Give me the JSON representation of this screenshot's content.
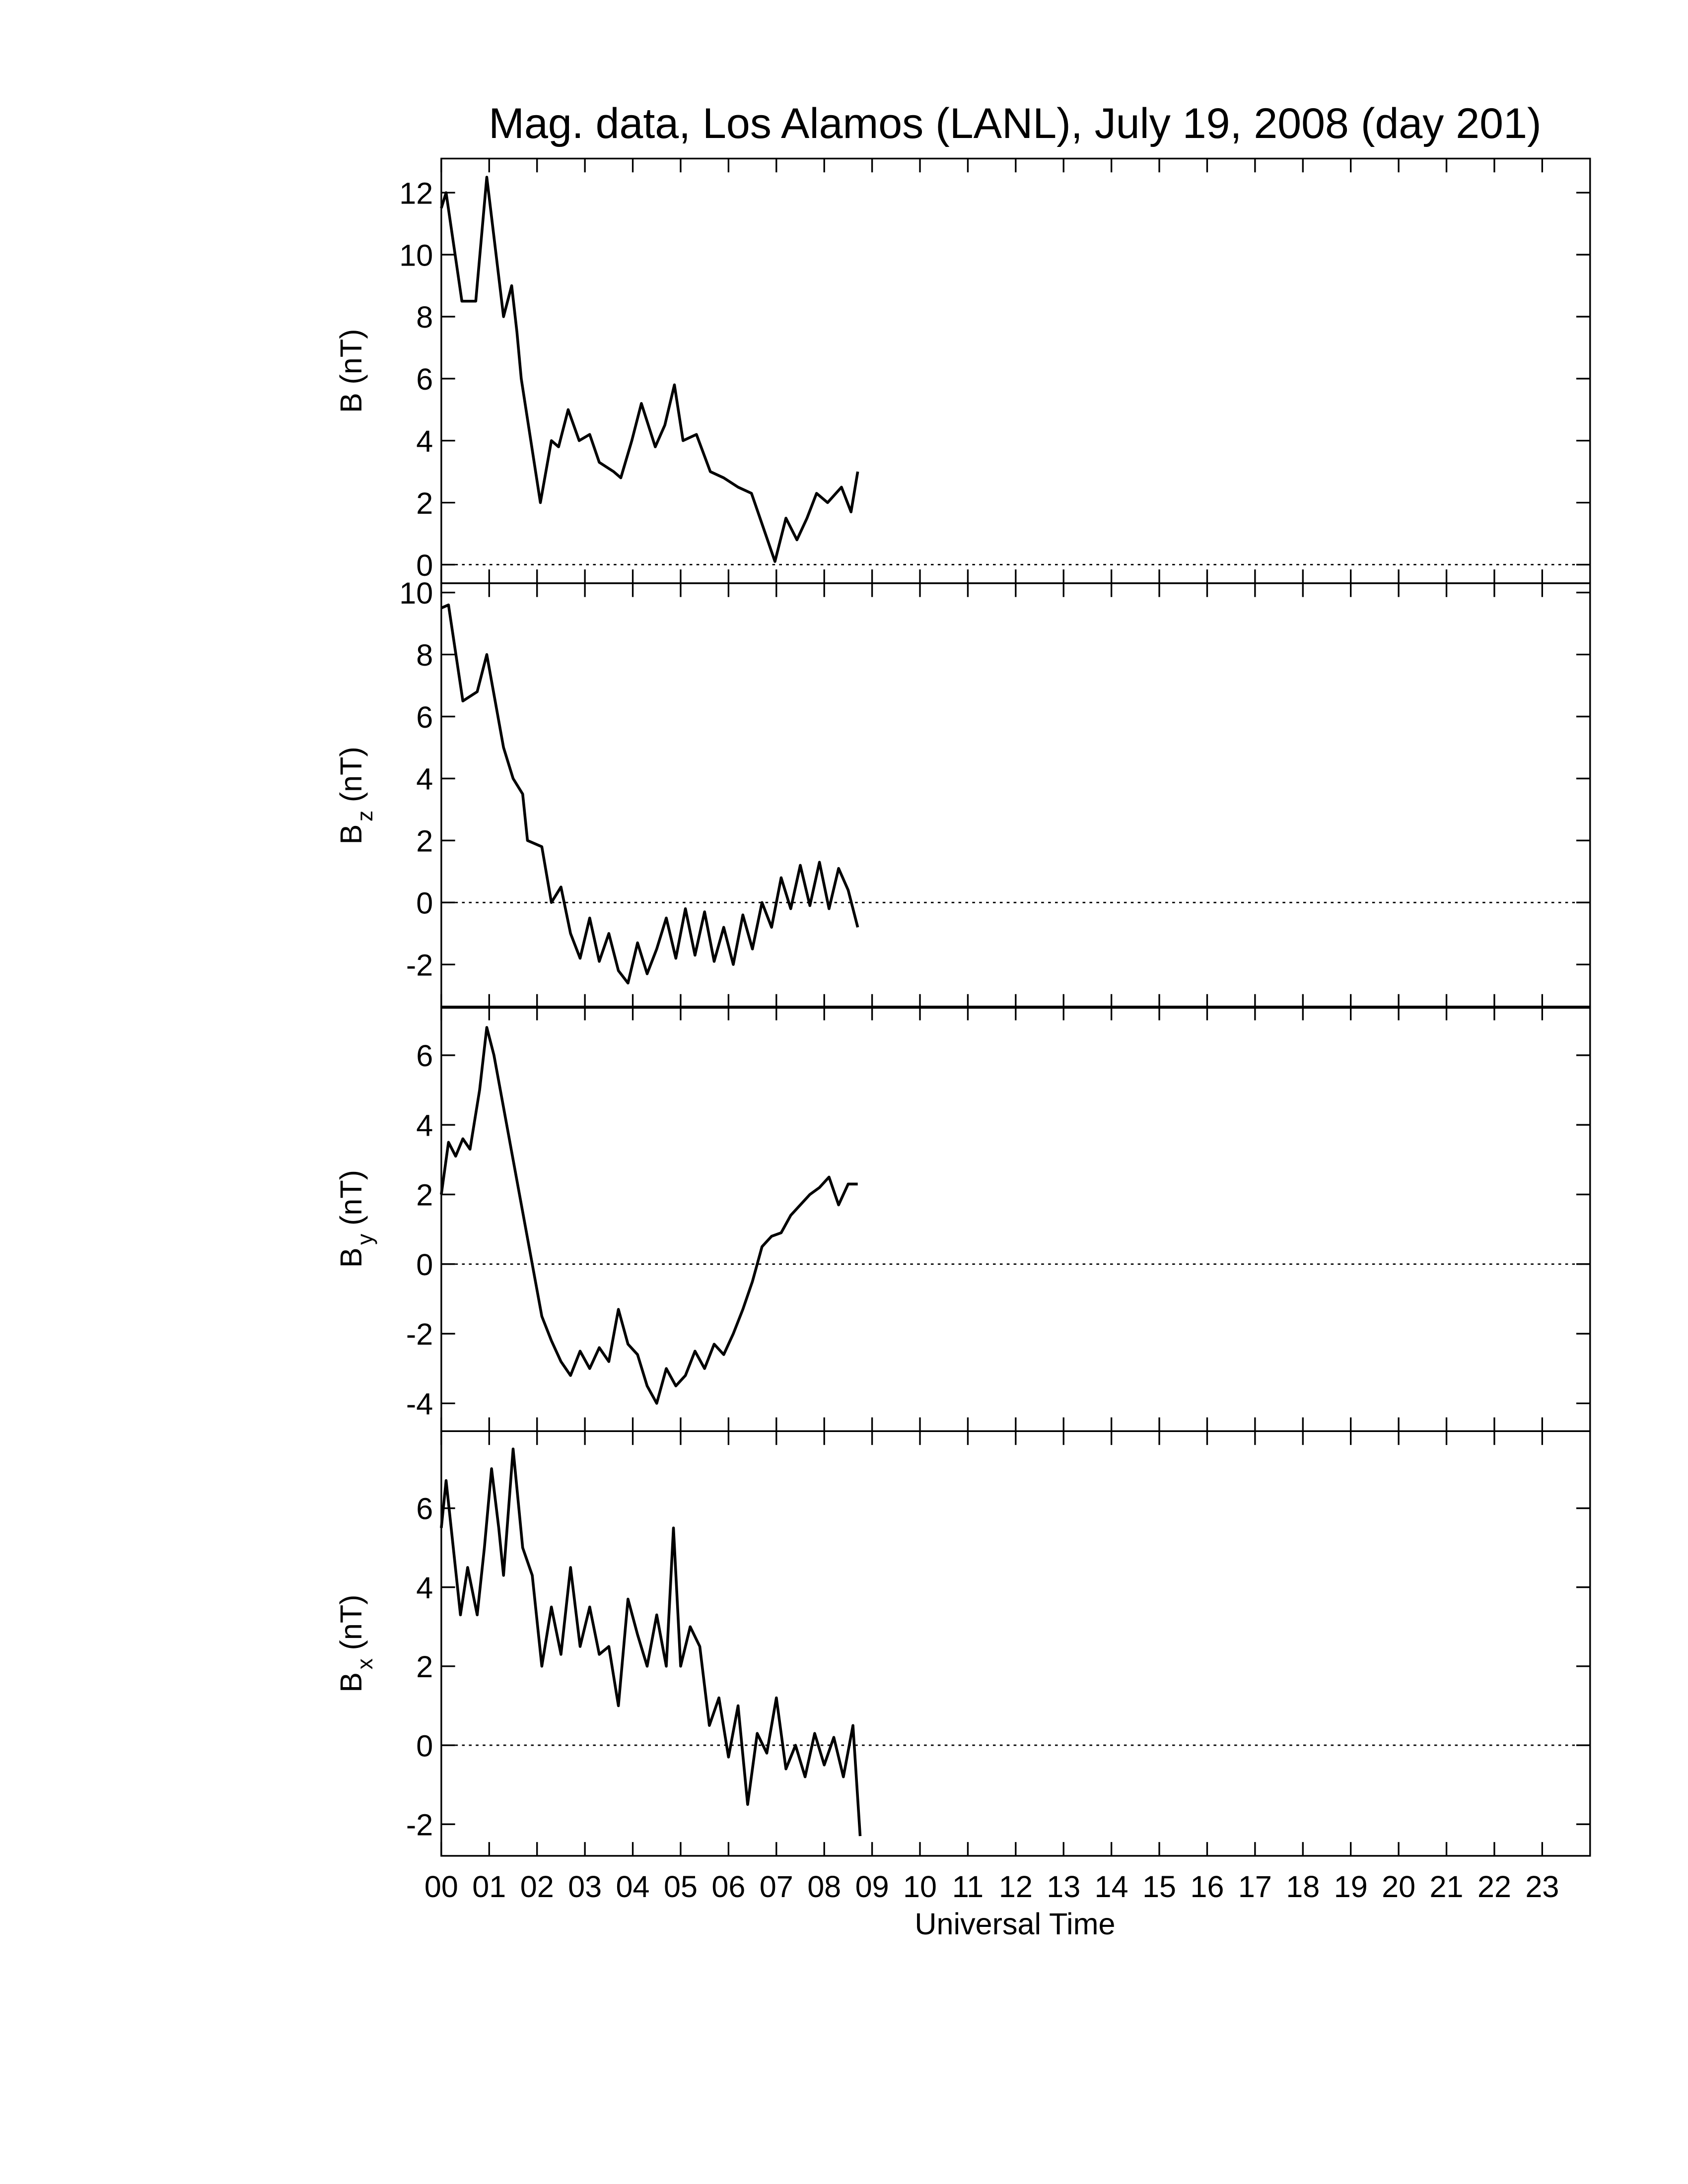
{
  "title": "Mag. data, Los Alamos (LANL), July 19, 2008 (day 201)",
  "xlabel": "Universal Time",
  "xlim": [
    0,
    24
  ],
  "xticks": [
    {
      "value": 0,
      "label": "00"
    },
    {
      "value": 1,
      "label": "01"
    },
    {
      "value": 2,
      "label": "02"
    },
    {
      "value": 3,
      "label": "03"
    },
    {
      "value": 4,
      "label": "04"
    },
    {
      "value": 5,
      "label": "05"
    },
    {
      "value": 6,
      "label": "06"
    },
    {
      "value": 7,
      "label": "07"
    },
    {
      "value": 8,
      "label": "08"
    },
    {
      "value": 9,
      "label": "09"
    },
    {
      "value": 10,
      "label": "10"
    },
    {
      "value": 11,
      "label": "11"
    },
    {
      "value": 12,
      "label": "12"
    },
    {
      "value": 13,
      "label": "13"
    },
    {
      "value": 14,
      "label": "14"
    },
    {
      "value": 15,
      "label": "15"
    },
    {
      "value": 16,
      "label": "16"
    },
    {
      "value": 17,
      "label": "17"
    },
    {
      "value": 18,
      "label": "18"
    },
    {
      "value": 19,
      "label": "19"
    },
    {
      "value": 20,
      "label": "20"
    },
    {
      "value": 21,
      "label": "21"
    },
    {
      "value": 22,
      "label": "22"
    },
    {
      "value": 23,
      "label": "23"
    }
  ],
  "chart_data": [
    {
      "type": "line",
      "ylabel_main": "B",
      "ylabel_unit": "(nT)",
      "color": "#000000",
      "reference_line": 0,
      "ylim": [
        -0.6,
        13.1
      ],
      "yticks": [
        0,
        2,
        4,
        6,
        8,
        10,
        12
      ],
      "x": [
        0,
        0.1,
        0.43,
        0.72,
        0.95,
        1.3,
        1.47,
        1.58,
        1.67,
        1.87,
        2.07,
        2.3,
        2.45,
        2.65,
        2.88,
        3.1,
        3.3,
        3.6,
        3.75,
        3.98,
        4.18,
        4.47,
        4.67,
        4.87,
        5.05,
        5.33,
        5.62,
        5.9,
        6.2,
        6.48,
        6.77,
        6.97,
        7.2,
        7.43,
        7.64,
        7.84,
        8.07,
        8.36,
        8.56,
        8.7
      ],
      "values": [
        11.5,
        12,
        8.5,
        8.5,
        12.5,
        8,
        9,
        7.5,
        6,
        4,
        2,
        4,
        3.8,
        5,
        4,
        4.2,
        3.3,
        3,
        2.8,
        4,
        5.2,
        3.8,
        4.5,
        5.8,
        4,
        4.2,
        3,
        2.8,
        2.5,
        2.3,
        1,
        0.1,
        1.5,
        0.8,
        1.5,
        2.3,
        2,
        2.5,
        1.7,
        3
      ]
    },
    {
      "type": "line",
      "ylabel_main": "B",
      "ylabel_sub": "z",
      "ylabel_unit": "(nT)",
      "color": "#000000",
      "reference_line": 0,
      "ylim": [
        -3.4,
        10.3
      ],
      "yticks": [
        -2,
        0,
        2,
        4,
        6,
        8,
        10
      ],
      "x": [
        0,
        0.15,
        0.45,
        0.75,
        0.95,
        1.3,
        1.5,
        1.7,
        1.8,
        2.1,
        2.3,
        2.5,
        2.7,
        2.9,
        3.1,
        3.3,
        3.5,
        3.7,
        3.9,
        4.1,
        4.3,
        4.5,
        4.7,
        4.9,
        5.1,
        5.3,
        5.5,
        5.7,
        5.9,
        6.1,
        6.3,
        6.5,
        6.7,
        6.9,
        7.1,
        7.3,
        7.5,
        7.7,
        7.9,
        8.1,
        8.3,
        8.5,
        8.7
      ],
      "values": [
        9.5,
        9.6,
        6.5,
        6.8,
        8,
        5,
        4,
        3.5,
        2,
        1.8,
        0,
        0.5,
        -1,
        -1.8,
        -0.5,
        -1.9,
        -1,
        -2.2,
        -2.6,
        -1.3,
        -2.3,
        -1.5,
        -0.5,
        -1.8,
        -0.2,
        -1.7,
        -0.3,
        -1.9,
        -0.8,
        -2,
        -0.4,
        -1.5,
        0,
        -0.8,
        0.8,
        -0.2,
        1.2,
        -0.1,
        1.3,
        -0.2,
        1.1,
        0.4,
        -0.8
      ]
    },
    {
      "type": "line",
      "ylabel_main": "B",
      "ylabel_sub": "y",
      "ylabel_unit": "(nT)",
      "color": "#000000",
      "reference_line": 0,
      "ylim": [
        -4.8,
        7.4
      ],
      "yticks": [
        -4,
        -2,
        0,
        2,
        4,
        6
      ],
      "x": [
        0,
        0.15,
        0.3,
        0.45,
        0.6,
        0.8,
        0.95,
        1.1,
        1.3,
        1.5,
        1.7,
        1.9,
        2.1,
        2.3,
        2.5,
        2.7,
        2.9,
        3.1,
        3.3,
        3.5,
        3.7,
        3.9,
        4.1,
        4.3,
        4.5,
        4.7,
        4.9,
        5.1,
        5.3,
        5.5,
        5.7,
        5.9,
        6.1,
        6.3,
        6.5,
        6.7,
        6.9,
        7.1,
        7.3,
        7.5,
        7.7,
        7.9,
        8.1,
        8.3,
        8.5,
        8.7
      ],
      "values": [
        2,
        3.5,
        3.1,
        3.6,
        3.3,
        5,
        6.8,
        6,
        4.5,
        3,
        1.5,
        0,
        -1.5,
        -2.2,
        -2.8,
        -3.2,
        -2.5,
        -3,
        -2.4,
        -2.8,
        -1.3,
        -2.3,
        -2.6,
        -3.5,
        -4,
        -3,
        -3.5,
        -3.2,
        -2.5,
        -3,
        -2.3,
        -2.6,
        -2,
        -1.3,
        -0.5,
        0.5,
        0.8,
        0.9,
        1.4,
        1.7,
        2,
        2.2,
        2.5,
        1.7,
        2.3,
        2.3
      ]
    },
    {
      "type": "line",
      "ylabel_main": "B",
      "ylabel_sub": "x",
      "ylabel_unit": "(nT)",
      "color": "#000000",
      "reference_line": 0,
      "ylim": [
        -2.8,
        7.95
      ],
      "yticks": [
        -2,
        0,
        2,
        4,
        6
      ],
      "x": [
        0,
        0.1,
        0.25,
        0.4,
        0.55,
        0.75,
        0.9,
        1.05,
        1.2,
        1.3,
        1.5,
        1.7,
        1.9,
        2.1,
        2.3,
        2.5,
        2.7,
        2.9,
        3.1,
        3.3,
        3.5,
        3.7,
        3.9,
        4.1,
        4.3,
        4.5,
        4.7,
        4.85,
        5.0,
        5.2,
        5.4,
        5.6,
        5.8,
        6.0,
        6.2,
        6.4,
        6.6,
        6.8,
        7.0,
        7.2,
        7.4,
        7.6,
        7.8,
        8.0,
        8.2,
        8.4,
        8.6,
        8.75
      ],
      "values": [
        5.5,
        6.7,
        5,
        3.3,
        4.5,
        3.3,
        5,
        7,
        5.5,
        4.3,
        7.5,
        5,
        4.3,
        2,
        3.5,
        2.3,
        4.5,
        2.5,
        3.5,
        2.3,
        2.5,
        1,
        3.7,
        2.8,
        2,
        3.3,
        2,
        5.5,
        2,
        3,
        2.5,
        0.5,
        1.2,
        -0.3,
        1,
        -1.5,
        0.3,
        -0.2,
        1.2,
        -0.6,
        0,
        -0.8,
        0.3,
        -0.5,
        0.2,
        -0.8,
        0.5,
        -2.3
      ]
    }
  ]
}
